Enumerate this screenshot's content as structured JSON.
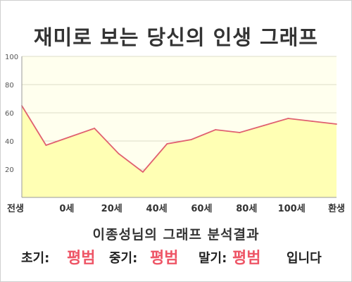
{
  "title": "재미로 보는 당신의 인생 그래프",
  "chart_data": {
    "type": "area",
    "x_labels": [
      "전생",
      "0세",
      "20세",
      "40세",
      "60세",
      "80세",
      "100세",
      "환생"
    ],
    "x": [
      0,
      1,
      2,
      3,
      4,
      5,
      6,
      7,
      8,
      9,
      10,
      11,
      12,
      13
    ],
    "values": [
      65,
      37,
      43,
      49,
      31,
      18,
      38,
      41,
      48,
      46,
      51,
      56,
      54,
      52
    ],
    "ylim": [
      0,
      100
    ],
    "y_ticks": [
      20,
      40,
      60,
      80,
      100
    ],
    "grid": true,
    "line_color": "#e06070",
    "fill_color": "#ffffb4",
    "plot_bg": "#ffffee"
  },
  "result": {
    "heading": "이종성님의 그래프 분석결과",
    "early_label": "초기:",
    "early_value": "평범",
    "mid_label": "중기:",
    "mid_value": "평범",
    "late_label": "말기:",
    "late_value": "평범",
    "suffix": "입니다"
  }
}
